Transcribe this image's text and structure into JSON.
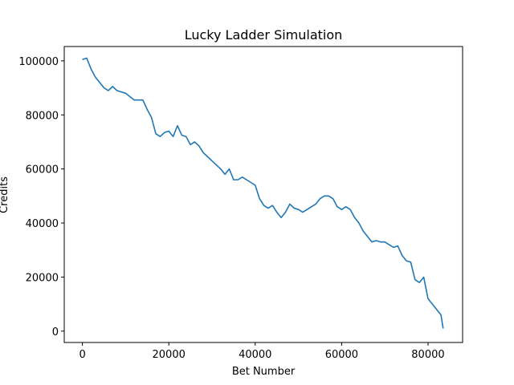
{
  "chart_data": {
    "type": "line",
    "title": "Lucky Ladder Simulation",
    "xlabel": "Bet Number",
    "ylabel": "Credits",
    "xlim": [
      -4200,
      88000
    ],
    "ylim": [
      -4200,
      105300
    ],
    "xticks": [
      0,
      20000,
      40000,
      60000,
      80000
    ],
    "xtick_labels": [
      "0",
      "20000",
      "40000",
      "60000",
      "80000"
    ],
    "yticks": [
      0,
      20000,
      40000,
      60000,
      80000,
      100000
    ],
    "ytick_labels": [
      "0",
      "20000",
      "40000",
      "60000",
      "80000",
      "100000"
    ],
    "grid": false,
    "line_color": "#1f77b4",
    "series": [
      {
        "name": "",
        "x": [
          0,
          1000,
          2000,
          3000,
          4000,
          5000,
          6000,
          7000,
          8000,
          9000,
          10000,
          12000,
          14000,
          15000,
          16000,
          17000,
          18000,
          19000,
          20000,
          21000,
          22000,
          23000,
          24000,
          25000,
          26000,
          27000,
          28000,
          29000,
          30000,
          32000,
          33000,
          34000,
          35000,
          36000,
          37000,
          38000,
          39000,
          40000,
          41000,
          42000,
          43000,
          44000,
          45000,
          46000,
          47000,
          48000,
          49000,
          50000,
          51000,
          52000,
          53000,
          54000,
          55000,
          56000,
          57000,
          58000,
          59000,
          60000,
          61000,
          62000,
          63000,
          64000,
          65000,
          66000,
          67000,
          68000,
          69000,
          70000,
          71000,
          72000,
          73000,
          74000,
          75000,
          76000,
          77000,
          78000,
          79000,
          80000,
          81000,
          82000,
          83000,
          83500
        ],
        "y": [
          100500,
          101000,
          97000,
          94000,
          92000,
          90000,
          89000,
          90500,
          89000,
          88500,
          88000,
          85500,
          85500,
          82000,
          79000,
          73000,
          72000,
          73500,
          74000,
          72000,
          76000,
          72500,
          72000,
          69000,
          70000,
          68500,
          66000,
          64500,
          63000,
          60000,
          58000,
          60000,
          56000,
          56000,
          57000,
          56000,
          55000,
          54000,
          49000,
          46500,
          45500,
          46500,
          44000,
          42000,
          44000,
          47000,
          45500,
          45000,
          44000,
          45000,
          46000,
          47000,
          49000,
          50000,
          50000,
          49000,
          46000,
          45000,
          46000,
          45000,
          42000,
          40000,
          37000,
          35000,
          33000,
          33500,
          33000,
          33000,
          32000,
          31000,
          31500,
          28000,
          26000,
          25500,
          19000,
          18000,
          20000,
          12000,
          10000,
          8000,
          6000,
          1000
        ]
      }
    ]
  }
}
